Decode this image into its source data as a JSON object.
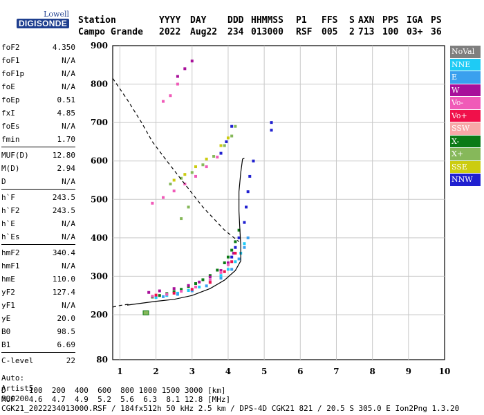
{
  "logo": {
    "line1": "Lowell",
    "line2": "DIGISONDE"
  },
  "header": {
    "labels": [
      "Station",
      "YYYY",
      "DAY",
      "DDD",
      "HHMMSS",
      "P1",
      "FFS",
      "S",
      "AXN",
      "PPS",
      "IGA",
      "PS"
    ],
    "values": [
      "Campo Grande",
      "2022",
      "Aug22",
      "234",
      "013000",
      "RSF",
      "005",
      "2",
      "713",
      "100",
      "03+",
      "36"
    ]
  },
  "params": [
    [
      [
        "foF2",
        "4.350"
      ],
      [
        "foF1",
        "N/A"
      ],
      [
        "foF1p",
        "N/A"
      ],
      [
        "foE",
        "N/A"
      ],
      [
        "foEp",
        "0.51"
      ],
      [
        "fxI",
        "4.85"
      ],
      [
        "foEs",
        "N/A"
      ],
      [
        "fmin",
        "1.70"
      ]
    ],
    [
      [
        "MUF(D)",
        "12.80"
      ],
      [
        "M(D)",
        "2.94"
      ],
      [
        "D",
        "N/A"
      ]
    ],
    [
      [
        "h`F",
        "243.5"
      ],
      [
        "h`F2",
        "243.5"
      ],
      [
        "h`E",
        "N/A"
      ],
      [
        "h`Es",
        "N/A"
      ]
    ],
    [
      [
        "hmF2",
        "340.4"
      ],
      [
        "hmF1",
        "N/A"
      ],
      [
        "hmE",
        "110.0"
      ],
      [
        "yF2",
        "127.4"
      ],
      [
        "yF1",
        "N/A"
      ],
      [
        "yE",
        "20.0"
      ],
      [
        "B0",
        "98.5"
      ],
      [
        "B1",
        "6.69"
      ]
    ],
    [
      [
        "C-level",
        "22"
      ]
    ]
  ],
  "auto": [
    "Auto:",
    "Artist5",
    "500200"
  ],
  "legend": [
    {
      "label": "NoVal",
      "color": "#7f7f7f"
    },
    {
      "label": "NNE",
      "color": "#1ecbf5"
    },
    {
      "label": "E",
      "color": "#3aa0ee"
    },
    {
      "label": "W",
      "color": "#a8109a"
    },
    {
      "label": "Vo-",
      "color": "#f05ab8"
    },
    {
      "label": "Vo+",
      "color": "#f0104a"
    },
    {
      "label": "SSW",
      "color": "#f7a8a8"
    },
    {
      "label": "X-",
      "color": "#0b7a16"
    },
    {
      "label": "X+",
      "color": "#86b85a"
    },
    {
      "label": "SSE",
      "color": "#cccc10"
    },
    {
      "label": "NNW",
      "color": "#2020d0"
    }
  ],
  "footer": {
    "d_line": "D     100  200  400  600  800 1000 1500 3000 [km]",
    "muf_line": "MUF   4.6  4.7  4.9  5.2  5.6  6.3  8.1 12.8 [MHz]",
    "file_line": "CGK21_2022234013000.RSF / 184fx512h 50 kHz 2.5 km / DPS-4D CGK21 821 / 20.5 S 305.0 E Ion2Png 1.3.20"
  },
  "chart_data": {
    "type": "scatter",
    "xlim": [
      0.8,
      10
    ],
    "ylim": [
      80,
      900
    ],
    "x_ticks": [
      1,
      2,
      3,
      4,
      5,
      6,
      7,
      8,
      9,
      10
    ],
    "y_ticks": [
      80,
      200,
      300,
      400,
      500,
      600,
      700,
      800,
      900
    ],
    "grid": true,
    "legend_position": "right",
    "series": [
      {
        "name": "X-",
        "color": "#0b7a16",
        "points": [
          [
            1.9,
            246
          ],
          [
            2.1,
            250
          ],
          [
            2.3,
            255
          ],
          [
            2.5,
            260
          ],
          [
            2.7,
            266
          ],
          [
            2.9,
            273
          ],
          [
            3.1,
            281
          ],
          [
            3.3,
            291
          ],
          [
            3.5,
            302
          ],
          [
            3.7,
            316
          ],
          [
            3.9,
            335
          ],
          [
            4.0,
            350
          ],
          [
            4.1,
            368
          ],
          [
            4.2,
            390
          ],
          [
            4.3,
            420
          ]
        ]
      },
      {
        "name": "NNE",
        "color": "#1ecbf5",
        "points": [
          [
            2.0,
            245
          ],
          [
            2.3,
            250
          ],
          [
            2.6,
            256
          ],
          [
            2.9,
            263
          ],
          [
            3.2,
            272
          ],
          [
            3.5,
            285
          ],
          [
            3.8,
            302
          ],
          [
            4.0,
            318
          ],
          [
            4.2,
            338
          ],
          [
            4.35,
            360
          ],
          [
            4.45,
            385
          ]
        ]
      },
      {
        "name": "E",
        "color": "#3aa0ee",
        "points": [
          [
            2.2,
            247
          ],
          [
            2.6,
            253
          ],
          [
            3.0,
            262
          ],
          [
            3.4,
            275
          ],
          [
            3.8,
            295
          ],
          [
            4.1,
            318
          ],
          [
            4.3,
            345
          ],
          [
            4.45,
            375
          ],
          [
            4.55,
            400
          ]
        ]
      },
      {
        "name": "W",
        "color": "#a8109a",
        "points": [
          [
            1.8,
            258
          ],
          [
            2.1,
            262
          ],
          [
            2.5,
            268
          ],
          [
            2.9,
            276
          ],
          [
            3.2,
            285
          ],
          [
            3.5,
            298
          ],
          [
            3.8,
            315
          ],
          [
            4.0,
            335
          ],
          [
            4.15,
            360
          ],
          [
            2.6,
            820
          ],
          [
            2.8,
            840
          ],
          [
            3.0,
            860
          ]
        ]
      },
      {
        "name": "Vo-",
        "color": "#f05ab8",
        "points": [
          [
            1.9,
            248
          ],
          [
            2.3,
            253
          ],
          [
            2.7,
            261
          ],
          [
            3.1,
            272
          ],
          [
            3.5,
            290
          ],
          [
            3.8,
            310
          ],
          [
            4.0,
            330
          ],
          [
            1.9,
            490
          ],
          [
            2.2,
            505
          ],
          [
            2.5,
            522
          ],
          [
            2.8,
            540
          ],
          [
            3.1,
            560
          ],
          [
            3.4,
            585
          ],
          [
            3.7,
            610
          ],
          [
            2.2,
            755
          ],
          [
            2.4,
            770
          ],
          [
            2.6,
            800
          ]
        ]
      },
      {
        "name": "Vo+",
        "color": "#f0104a",
        "points": [
          [
            2.0,
            251
          ],
          [
            2.5,
            256
          ],
          [
            3.0,
            266
          ],
          [
            3.5,
            284
          ],
          [
            3.9,
            312
          ],
          [
            4.1,
            338
          ],
          [
            4.2,
            360
          ]
        ]
      },
      {
        "name": "X+",
        "color": "#86b85a",
        "points": [
          [
            2.4,
            540
          ],
          [
            2.7,
            555
          ],
          [
            3.0,
            570
          ],
          [
            3.3,
            590
          ],
          [
            3.6,
            612
          ],
          [
            3.9,
            640
          ],
          [
            4.1,
            665
          ],
          [
            4.2,
            690
          ],
          [
            2.9,
            480
          ],
          [
            2.7,
            450
          ]
        ]
      },
      {
        "name": "SSE",
        "color": "#cccc10",
        "points": [
          [
            2.5,
            550
          ],
          [
            2.8,
            565
          ],
          [
            3.1,
            585
          ],
          [
            3.4,
            605
          ],
          [
            3.8,
            640
          ],
          [
            4.0,
            660
          ]
        ]
      },
      {
        "name": "NNW",
        "color": "#2020d0",
        "points": [
          [
            4.1,
            350
          ],
          [
            4.2,
            375
          ],
          [
            4.3,
            400
          ],
          [
            4.45,
            440
          ],
          [
            4.5,
            480
          ],
          [
            4.55,
            520
          ],
          [
            4.6,
            560
          ],
          [
            4.7,
            600
          ],
          [
            3.8,
            620
          ],
          [
            3.95,
            650
          ],
          [
            4.1,
            690
          ],
          [
            5.2,
            680
          ],
          [
            5.2,
            700
          ]
        ]
      }
    ],
    "profile_solid": [
      [
        1.2,
        225
      ],
      [
        2.0,
        235
      ],
      [
        2.5,
        240
      ],
      [
        3.0,
        250
      ],
      [
        3.5,
        268
      ],
      [
        3.9,
        290
      ],
      [
        4.2,
        315
      ],
      [
        4.35,
        340
      ],
      [
        4.35,
        380
      ],
      [
        4.32,
        430
      ],
      [
        4.3,
        470
      ],
      [
        4.3,
        520
      ],
      [
        4.35,
        570
      ],
      [
        4.4,
        605
      ],
      [
        4.45,
        607
      ]
    ],
    "profile_dashed_top": [
      [
        0.8,
        815
      ],
      [
        1.2,
        760
      ],
      [
        1.6,
        700
      ],
      [
        1.9,
        650
      ],
      [
        2.3,
        600
      ],
      [
        2.8,
        540
      ],
      [
        3.3,
        480
      ],
      [
        3.9,
        420
      ],
      [
        4.3,
        390
      ]
    ],
    "profile_dashed_bottom": [
      [
        0.8,
        220
      ],
      [
        1.0,
        224
      ],
      [
        1.3,
        228
      ]
    ],
    "marker": [
      [
        1.72,
        205
      ]
    ]
  }
}
